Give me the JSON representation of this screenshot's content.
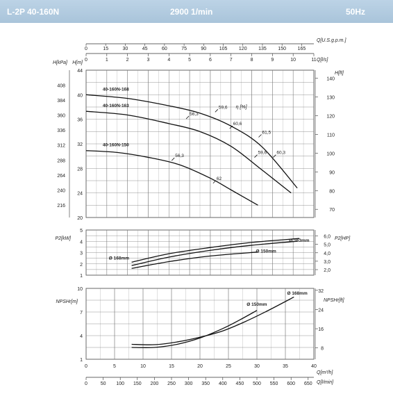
{
  "header": {
    "model": "L-2P 40-160N",
    "speed": "2900 1/min",
    "frequency": "50Hz",
    "bg_color": "#b3cce0"
  },
  "chart_data": [
    {
      "type": "line",
      "title": "Head",
      "xlabel": "Q[l/s]",
      "ylabel": "H[m]",
      "secondary_x": {
        "label": "Q[U.S.g.p.m.]",
        "ticks": [
          0,
          15,
          30,
          45,
          60,
          75,
          90,
          105,
          120,
          135,
          150,
          165
        ]
      },
      "secondary_y_left": {
        "label": "H[kPa]",
        "ticks": [
          216,
          240,
          264,
          288,
          312,
          336,
          360,
          384,
          408
        ]
      },
      "secondary_y_right": {
        "label": "H[ft]",
        "ticks": [
          70,
          80,
          90,
          100,
          110,
          120,
          130,
          140
        ]
      },
      "xlim": [
        0,
        11
      ],
      "ylim": [
        20,
        44
      ],
      "x_ticks": [
        0,
        1,
        2,
        3,
        4,
        5,
        6,
        7,
        8,
        9,
        10,
        11
      ],
      "y_ticks": [
        20,
        24,
        28,
        32,
        36,
        40,
        44
      ],
      "efficiency_label": "η [%]",
      "series": [
        {
          "name": "40-160N-168",
          "label": "40-160N-168",
          "x": [
            0,
            2,
            4,
            5.5,
            7,
            8.5,
            10.2
          ],
          "y": [
            40,
            39.4,
            38.2,
            37,
            34.9,
            31.5,
            24.8
          ]
        },
        {
          "name": "40-160N-163",
          "label": "40-160N-163",
          "x": [
            0,
            2,
            4,
            5.5,
            7,
            8.4,
            9.9
          ],
          "y": [
            37.3,
            36.7,
            35.3,
            34,
            31.6,
            28,
            24
          ]
        },
        {
          "name": "40-160N-150",
          "label": "40-160N-150",
          "x": [
            0,
            1.5,
            3,
            4.5,
            6,
            7,
            8.3
          ],
          "y": [
            30.9,
            30.6,
            29.8,
            28.6,
            26.4,
            24.5,
            22
          ]
        }
      ],
      "efficiency_points": [
        {
          "label": "56,3",
          "x": 4.9,
          "y": 36.3
        },
        {
          "label": "59,6",
          "x": 6.3,
          "y": 37.4
        },
        {
          "label": "60,6",
          "x": 7.0,
          "y": 34.7
        },
        {
          "label": "61,5",
          "x": 8.4,
          "y": 33.3
        },
        {
          "label": "59,6",
          "x": 8.2,
          "y": 30.0
        },
        {
          "label": "60,3",
          "x": 9.1,
          "y": 30.0
        },
        {
          "label": "56,3",
          "x": 4.2,
          "y": 29.5
        },
        {
          "label": "62",
          "x": 6.2,
          "y": 25.8
        }
      ]
    },
    {
      "type": "line",
      "title": "Power",
      "ylabel": "P2[kW]",
      "secondary_y_right": {
        "label": "P2[HP]",
        "ticks": [
          "2,0",
          "3,0",
          "4,0",
          "5,0",
          "6,0"
        ]
      },
      "xlim": [
        0,
        11
      ],
      "ylim": [
        1,
        5
      ],
      "y_ticks": [
        1,
        2,
        3,
        4,
        5
      ],
      "series": [
        {
          "name": "168mm",
          "label": "Ø 168mm",
          "x": [
            2.2,
            4,
            6,
            8,
            10.3
          ],
          "y": [
            2.15,
            2.9,
            3.45,
            3.9,
            4.25
          ]
        },
        {
          "name": "163mm",
          "label": "Ø 163mm",
          "x": [
            2.2,
            4,
            6,
            8,
            10.2
          ],
          "y": [
            1.85,
            2.6,
            3.2,
            3.65,
            4.0
          ]
        },
        {
          "name": "150mm",
          "label": "Ø 150mm",
          "x": [
            2.2,
            4,
            6,
            8.3
          ],
          "y": [
            1.6,
            2.2,
            2.7,
            3.05
          ]
        }
      ]
    },
    {
      "type": "line",
      "title": "NPSH",
      "xlabel": "Q[m³/h]",
      "ylabel": "NPSHr[m]",
      "secondary_x": {
        "label": "Q[l/min]",
        "ticks": [
          0,
          50,
          100,
          150,
          200,
          250,
          300,
          350,
          400,
          450,
          500,
          550,
          600,
          650
        ]
      },
      "secondary_y_right": {
        "label": "NPSHr[ft]",
        "ticks": [
          8,
          16,
          24,
          32
        ]
      },
      "xlim": [
        0,
        40
      ],
      "ylim": [
        1,
        10
      ],
      "x_ticks": [
        0,
        5,
        10,
        15,
        20,
        25,
        30,
        35,
        40
      ],
      "y_ticks": [
        1,
        4,
        7,
        10
      ],
      "series": [
        {
          "name": "168mm",
          "label": "Ø 168mm",
          "x": [
            8,
            12,
            16,
            20,
            24,
            28,
            32,
            36.5
          ],
          "y": [
            2.9,
            2.85,
            3.2,
            3.8,
            4.6,
            5.8,
            7.2,
            8.9
          ]
        },
        {
          "name": "150mm",
          "label": "Ø 150mm",
          "x": [
            8,
            12,
            16,
            20,
            24,
            27,
            30
          ],
          "y": [
            2.5,
            2.5,
            2.9,
            3.7,
            4.9,
            6.0,
            7.2
          ]
        }
      ]
    }
  ]
}
